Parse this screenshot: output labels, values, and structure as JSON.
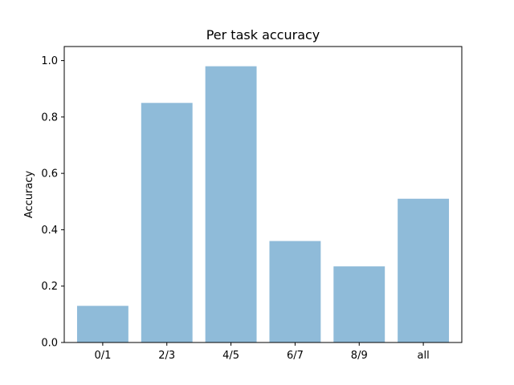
{
  "chart_data": {
    "type": "bar",
    "title": "Per task accuracy",
    "xlabel": "",
    "ylabel": "Accuracy",
    "categories": [
      "0/1",
      "2/3",
      "4/5",
      "6/7",
      "8/9",
      "all"
    ],
    "values": [
      0.13,
      0.85,
      0.98,
      0.36,
      0.27,
      0.51
    ],
    "ylim": [
      0,
      1.05
    ],
    "yticks": [
      "0.0",
      "0.2",
      "0.4",
      "0.6",
      "0.8",
      "1.0"
    ],
    "grid": false,
    "bar_color": "#1f77b4",
    "bar_alpha": 0.5
  }
}
